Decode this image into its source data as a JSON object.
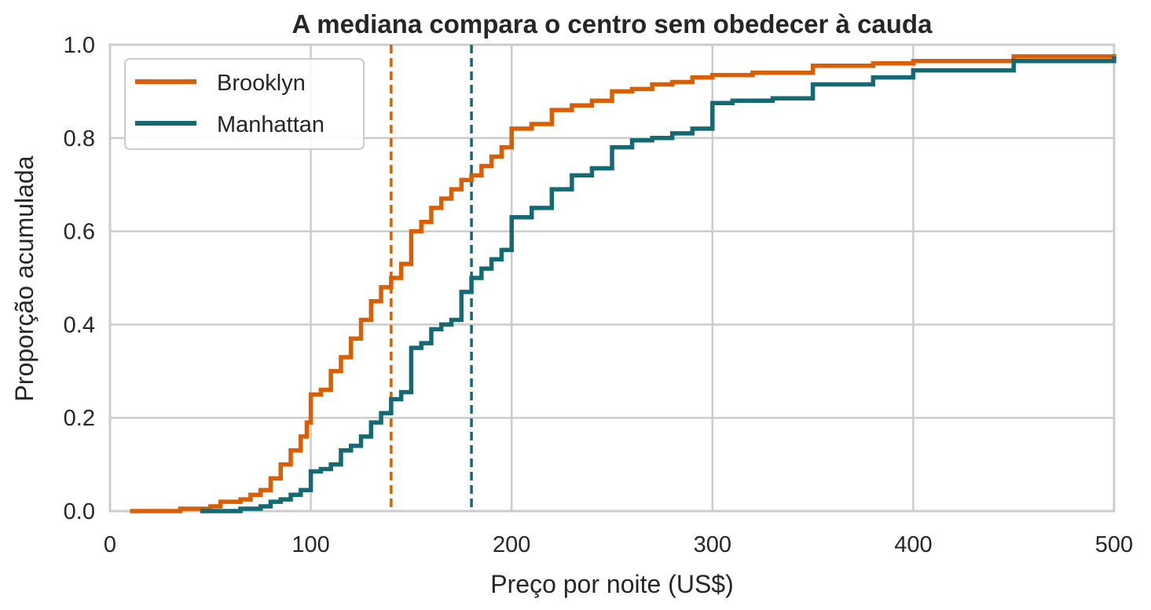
{
  "chart_data": {
    "type": "line",
    "subtype": "ecdf-step",
    "title": "A mediana compara o centro sem obedecer à cauda",
    "xlabel": "Preço por noite (US$)",
    "ylabel": "Proporção acumulada",
    "xlim": [
      0,
      500
    ],
    "ylim": [
      0,
      1
    ],
    "x_ticks": [
      0,
      100,
      200,
      300,
      400,
      500
    ],
    "x_tick_labels": [
      "0",
      "100",
      "200",
      "300",
      "400",
      "500"
    ],
    "y_ticks": [
      0,
      0.2,
      0.4,
      0.6,
      0.8,
      1.0
    ],
    "y_tick_labels": [
      "0.0",
      "0.2",
      "0.4",
      "0.6",
      "0.8",
      "1.0"
    ],
    "grid": true,
    "legend_position": "top-left",
    "series": [
      {
        "name": "Brooklyn",
        "color": "#d95f02",
        "points": [
          [
            10,
            0.0
          ],
          [
            35,
            0.005
          ],
          [
            50,
            0.01
          ],
          [
            55,
            0.02
          ],
          [
            65,
            0.025
          ],
          [
            70,
            0.035
          ],
          [
            75,
            0.045
          ],
          [
            80,
            0.07
          ],
          [
            85,
            0.1
          ],
          [
            90,
            0.13
          ],
          [
            95,
            0.16
          ],
          [
            98,
            0.19
          ],
          [
            100,
            0.25
          ],
          [
            105,
            0.26
          ],
          [
            110,
            0.3
          ],
          [
            115,
            0.33
          ],
          [
            120,
            0.37
          ],
          [
            125,
            0.41
          ],
          [
            130,
            0.45
          ],
          [
            135,
            0.48
          ],
          [
            140,
            0.5
          ],
          [
            145,
            0.53
          ],
          [
            150,
            0.6
          ],
          [
            155,
            0.62
          ],
          [
            160,
            0.65
          ],
          [
            165,
            0.67
          ],
          [
            170,
            0.69
          ],
          [
            175,
            0.71
          ],
          [
            180,
            0.72
          ],
          [
            185,
            0.74
          ],
          [
            190,
            0.76
          ],
          [
            195,
            0.78
          ],
          [
            200,
            0.82
          ],
          [
            210,
            0.83
          ],
          [
            220,
            0.86
          ],
          [
            230,
            0.87
          ],
          [
            240,
            0.88
          ],
          [
            250,
            0.9
          ],
          [
            260,
            0.905
          ],
          [
            270,
            0.915
          ],
          [
            280,
            0.92
          ],
          [
            290,
            0.93
          ],
          [
            300,
            0.935
          ],
          [
            320,
            0.94
          ],
          [
            350,
            0.955
          ],
          [
            380,
            0.96
          ],
          [
            400,
            0.965
          ],
          [
            450,
            0.975
          ],
          [
            500,
            0.98
          ]
        ],
        "median": 140
      },
      {
        "name": "Manhattan",
        "color": "#136a73",
        "points": [
          [
            45,
            0.0
          ],
          [
            65,
            0.005
          ],
          [
            75,
            0.01
          ],
          [
            80,
            0.02
          ],
          [
            85,
            0.025
          ],
          [
            90,
            0.035
          ],
          [
            95,
            0.045
          ],
          [
            100,
            0.085
          ],
          [
            105,
            0.09
          ],
          [
            110,
            0.1
          ],
          [
            115,
            0.13
          ],
          [
            120,
            0.14
          ],
          [
            125,
            0.16
          ],
          [
            130,
            0.19
          ],
          [
            135,
            0.21
          ],
          [
            140,
            0.24
          ],
          [
            145,
            0.255
          ],
          [
            150,
            0.35
          ],
          [
            155,
            0.36
          ],
          [
            160,
            0.39
          ],
          [
            165,
            0.4
          ],
          [
            170,
            0.41
          ],
          [
            175,
            0.47
          ],
          [
            180,
            0.5
          ],
          [
            185,
            0.52
          ],
          [
            190,
            0.54
          ],
          [
            195,
            0.56
          ],
          [
            200,
            0.63
          ],
          [
            210,
            0.65
          ],
          [
            220,
            0.69
          ],
          [
            230,
            0.72
          ],
          [
            240,
            0.735
          ],
          [
            250,
            0.78
          ],
          [
            260,
            0.795
          ],
          [
            270,
            0.8
          ],
          [
            280,
            0.81
          ],
          [
            290,
            0.82
          ],
          [
            300,
            0.875
          ],
          [
            310,
            0.88
          ],
          [
            330,
            0.885
          ],
          [
            350,
            0.915
          ],
          [
            380,
            0.93
          ],
          [
            400,
            0.945
          ],
          [
            450,
            0.965
          ],
          [
            500,
            0.975
          ]
        ],
        "median": 180
      }
    ]
  }
}
